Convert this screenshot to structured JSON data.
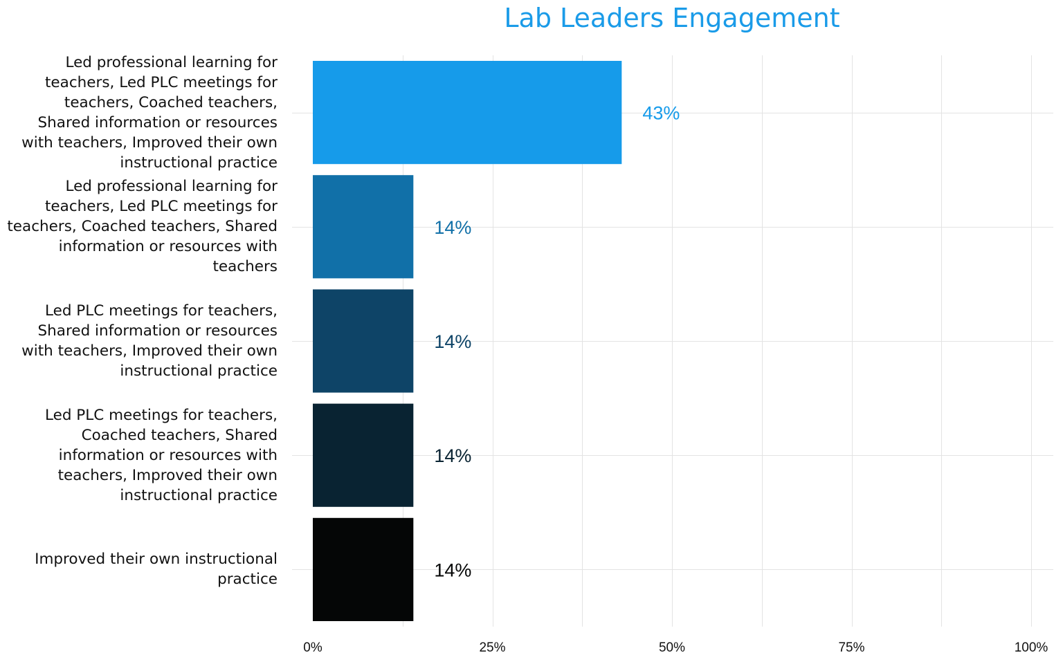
{
  "chart_data": {
    "type": "bar",
    "orientation": "horizontal",
    "title": "Lab Leaders Engagement",
    "xlabel": "",
    "ylabel": "",
    "xlim": [
      0,
      100
    ],
    "grid": true,
    "legend": "none",
    "categories": [
      "Led professional learning for teachers, Led PLC meetings for teachers, Coached teachers, Shared information or resources with teachers, Improved their own instructional practice",
      "Led professional learning for teachers, Led PLC meetings for teachers, Coached teachers, Shared information or resources with teachers",
      "Led PLC meetings for teachers, Shared information or resources with teachers, Improved their own instructional practice",
      "Led PLC meetings for teachers, Coached teachers, Shared information or resources with teachers, Improved their own instructional practice",
      "Improved their own instructional practice"
    ],
    "category_lines": [
      [
        "Led professional learning for",
        "teachers, Led PLC meetings for",
        "teachers, Coached teachers,",
        "Shared information or resources",
        "with teachers, Improved their own",
        "instructional practice"
      ],
      [
        "Led professional learning for",
        "teachers, Led PLC meetings for",
        "teachers, Coached teachers, Shared",
        "information or resources with",
        "teachers"
      ],
      [
        "Led PLC meetings for teachers,",
        "Shared information or resources",
        "with teachers, Improved their own",
        "instructional practice"
      ],
      [
        "Led PLC meetings for teachers,",
        "Coached teachers, Shared",
        "information or resources with",
        "teachers, Improved their own",
        "instructional practice"
      ],
      [
        "Improved their own instructional",
        "practice"
      ]
    ],
    "values": [
      43,
      14,
      14,
      14,
      14
    ],
    "value_labels": [
      "43%",
      "14%",
      "14%",
      "14%",
      "14%"
    ],
    "bar_colors": [
      "#169bea",
      "#1170a8",
      "#0e4467",
      "#092332",
      "#050606"
    ],
    "x_ticks": [
      0,
      25,
      50,
      75,
      100
    ],
    "x_tick_labels": [
      "0%",
      "25%",
      "50%",
      "75%",
      "100%"
    ]
  }
}
